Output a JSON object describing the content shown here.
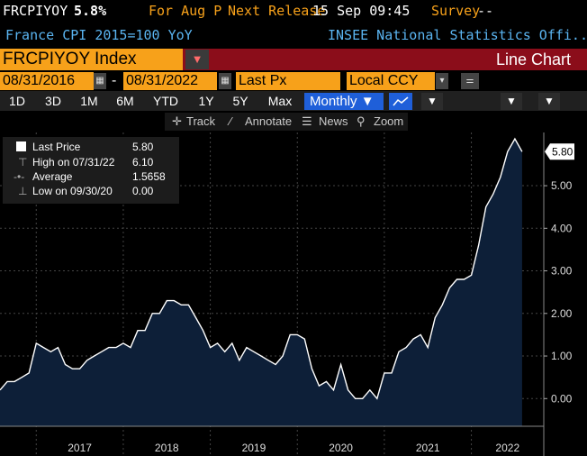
{
  "header": {
    "ticker": "FRCPIYOY",
    "last_value": "5.8%",
    "period": "For Aug P",
    "next_release_label": "Next Release",
    "next_release_value": "15 Sep 09:45",
    "survey_label": "Survey",
    "survey_value": "--",
    "description": "France CPI 2015=100 YoY",
    "source": "INSEE National Statistics Offi..."
  },
  "toolbar": {
    "security": "FRCPIYOY Index",
    "chart_type": "Line Chart",
    "start_date": "08/31/2016",
    "date_sep": "-",
    "end_date": "08/31/2022",
    "field": "Last Px",
    "currency": "Local CCY"
  },
  "periods": [
    "1D",
    "3D",
    "1M",
    "6M",
    "YTD",
    "1Y",
    "5Y",
    "Max"
  ],
  "frequency": "Monthly ▼",
  "tools": {
    "track": "Track",
    "annotate": "Annotate",
    "news": "News",
    "zoom": "Zoom"
  },
  "legend": {
    "last_label": "Last Price",
    "last_value": "5.80",
    "high_label": "High on 07/31/22",
    "high_value": "6.10",
    "avg_label": "Average",
    "avg_value": "1.5658",
    "low_label": "Low on 09/30/20",
    "low_value": "0.00"
  },
  "colors": {
    "accent": "#f7a11a",
    "bar_red": "#8b0d1a",
    "fill": "#0d1f38",
    "line": "#ffffff",
    "header_blue": "#5ab4f0"
  },
  "chart_data": {
    "type": "area",
    "series": [
      {
        "name": "Last Price",
        "x": [
          "2016-08",
          "2016-09",
          "2016-10",
          "2016-11",
          "2016-12",
          "2017-01",
          "2017-02",
          "2017-03",
          "2017-04",
          "2017-05",
          "2017-06",
          "2017-07",
          "2017-08",
          "2017-09",
          "2017-10",
          "2017-11",
          "2017-12",
          "2018-01",
          "2018-02",
          "2018-03",
          "2018-04",
          "2018-05",
          "2018-06",
          "2018-07",
          "2018-08",
          "2018-09",
          "2018-10",
          "2018-11",
          "2018-12",
          "2019-01",
          "2019-02",
          "2019-03",
          "2019-04",
          "2019-05",
          "2019-06",
          "2019-07",
          "2019-08",
          "2019-09",
          "2019-10",
          "2019-11",
          "2019-12",
          "2020-01",
          "2020-02",
          "2020-03",
          "2020-04",
          "2020-05",
          "2020-06",
          "2020-07",
          "2020-08",
          "2020-09",
          "2020-10",
          "2020-11",
          "2020-12",
          "2021-01",
          "2021-02",
          "2021-03",
          "2021-04",
          "2021-05",
          "2021-06",
          "2021-07",
          "2021-08",
          "2021-09",
          "2021-10",
          "2021-11",
          "2021-12",
          "2022-01",
          "2022-02",
          "2022-03",
          "2022-04",
          "2022-05",
          "2022-06",
          "2022-07",
          "2022-08"
        ],
        "values": [
          0.2,
          0.4,
          0.4,
          0.5,
          0.6,
          1.3,
          1.2,
          1.1,
          1.2,
          0.8,
          0.7,
          0.7,
          0.9,
          1.0,
          1.1,
          1.2,
          1.2,
          1.3,
          1.2,
          1.6,
          1.6,
          2.0,
          2.0,
          2.3,
          2.3,
          2.2,
          2.2,
          1.9,
          1.6,
          1.2,
          1.3,
          1.1,
          1.3,
          0.9,
          1.2,
          1.1,
          1.0,
          0.9,
          0.8,
          1.0,
          1.5,
          1.5,
          1.4,
          0.7,
          0.3,
          0.4,
          0.2,
          0.8,
          0.2,
          0.0,
          0.0,
          0.2,
          0.0,
          0.6,
          0.6,
          1.1,
          1.2,
          1.4,
          1.5,
          1.2,
          1.9,
          2.2,
          2.6,
          2.8,
          2.8,
          2.9,
          3.6,
          4.5,
          4.8,
          5.2,
          5.8,
          6.1,
          5.8
        ]
      }
    ],
    "xlabels": [
      "2017",
      "2018",
      "2019",
      "2020",
      "2021",
      "2022"
    ],
    "yticks": [
      "0.00",
      "1.00",
      "2.00",
      "3.00",
      "4.00",
      "5.00"
    ],
    "ylim": [
      -0.65,
      6.25
    ],
    "last_label": "5.80",
    "grid": true
  }
}
